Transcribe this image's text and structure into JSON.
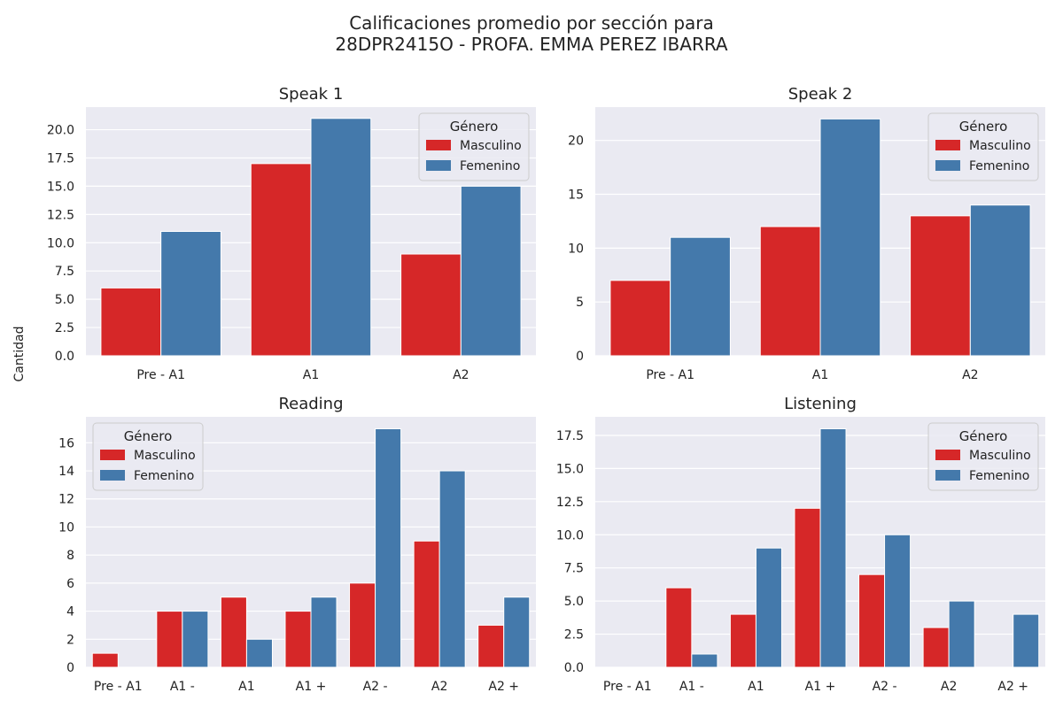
{
  "figure": {
    "title_line1": "Calificaciones promedio por sección para",
    "title_line2": "28DPR2415O - PROFA. EMMA PEREZ IBARRA",
    "ylabel": "Cantidad"
  },
  "colors": {
    "masculino": "#d62728",
    "femenino": "#4479ab",
    "plot_bg": "#eaeaf2",
    "grid": "#ffffff"
  },
  "chart_data": [
    {
      "type": "bar",
      "title": "Speak 1",
      "categories": [
        "Pre - A1",
        "A1",
        "A2"
      ],
      "series": [
        {
          "name": "Masculino",
          "values": [
            6,
            17,
            9
          ]
        },
        {
          "name": "Femenino",
          "values": [
            11,
            21,
            15
          ]
        }
      ],
      "ylim": [
        0,
        22
      ],
      "yticks": [
        0.0,
        2.5,
        5.0,
        7.5,
        10.0,
        12.5,
        15.0,
        17.5,
        20.0
      ],
      "ytick_decimals": 1,
      "legend_title": "Género",
      "legend_position": "top-right",
      "grid": true
    },
    {
      "type": "bar",
      "title": "Speak 2",
      "categories": [
        "Pre - A1",
        "A1",
        "A2"
      ],
      "series": [
        {
          "name": "Masculino",
          "values": [
            7,
            12,
            13
          ]
        },
        {
          "name": "Femenino",
          "values": [
            11,
            22,
            14
          ]
        }
      ],
      "ylim": [
        0,
        23.1
      ],
      "yticks": [
        0,
        5,
        10,
        15,
        20
      ],
      "ytick_decimals": 0,
      "legend_title": "Género",
      "legend_position": "top-right",
      "grid": true
    },
    {
      "type": "bar",
      "title": "Reading",
      "categories": [
        "Pre - A1",
        "A1 -",
        "A1",
        "A1 +",
        "A2 -",
        "A2",
        "A2 +"
      ],
      "series": [
        {
          "name": "Masculino",
          "values": [
            1,
            4,
            5,
            4,
            6,
            9,
            3
          ]
        },
        {
          "name": "Femenino",
          "values": [
            0,
            4,
            2,
            5,
            17,
            14,
            5
          ]
        }
      ],
      "ylim": [
        0,
        17.85
      ],
      "yticks": [
        0,
        2,
        4,
        6,
        8,
        10,
        12,
        14,
        16
      ],
      "ytick_decimals": 0,
      "legend_title": "Género",
      "legend_position": "top-left",
      "grid": true
    },
    {
      "type": "bar",
      "title": "Listening",
      "categories": [
        "Pre - A1",
        "A1 -",
        "A1",
        "A1 +",
        "A2 -",
        "A2",
        "A2 +"
      ],
      "series": [
        {
          "name": "Masculino",
          "values": [
            0,
            6,
            4,
            12,
            7,
            3,
            0
          ]
        },
        {
          "name": "Femenino",
          "values": [
            0,
            1,
            9,
            18,
            10,
            5,
            4
          ]
        }
      ],
      "ylim": [
        0,
        18.9
      ],
      "yticks": [
        0.0,
        2.5,
        5.0,
        7.5,
        10.0,
        12.5,
        15.0,
        17.5
      ],
      "ytick_decimals": 1,
      "legend_title": "Género",
      "legend_position": "top-right",
      "grid": true
    }
  ]
}
